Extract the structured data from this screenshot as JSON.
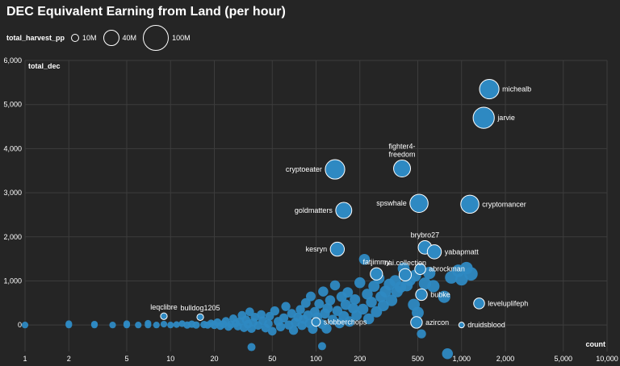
{
  "chart_data": {
    "type": "scatter",
    "title": "DEC Equivalent Earning from Land (per hour)",
    "xlabel": "count",
    "ylabel": "total_dec",
    "x_scale": "log",
    "xlim": [
      1,
      10000
    ],
    "ylim": [
      -600,
      6000
    ],
    "x_ticks": [
      1,
      2,
      5,
      10,
      20,
      50,
      100,
      200,
      500,
      1000,
      2000,
      5000,
      10000
    ],
    "x_tick_labels": [
      "1",
      "2",
      "5",
      "10",
      "20",
      "50",
      "100",
      "200",
      "500",
      "1,000",
      "2,000",
      "5,000",
      "10,000"
    ],
    "y_ticks": [
      0,
      1000,
      2000,
      3000,
      4000,
      5000,
      6000
    ],
    "y_tick_labels": [
      "0",
      "1,000",
      "2,000",
      "3,000",
      "4,000",
      "5,000",
      "6,000"
    ],
    "size_legend": {
      "title": "total_harvest_pp",
      "items": [
        {
          "label": "10M",
          "value": 10
        },
        {
          "label": "40M",
          "value": 40
        },
        {
          "label": "100M",
          "value": 100
        }
      ]
    },
    "colors": {
      "point": "#2e89c2",
      "stroke": "#ffffff",
      "grid": "#3d3d3d",
      "background": "#252525"
    },
    "labeled_points": [
      {
        "name": "michealb",
        "x": 1550,
        "y": 5350,
        "size": 45
      },
      {
        "name": "jarvie",
        "x": 1420,
        "y": 4700,
        "size": 55
      },
      {
        "name": "fighter4-\nfreedom",
        "x": 390,
        "y": 3550,
        "size": 32
      },
      {
        "name": "cryptoeater",
        "x": 135,
        "y": 3530,
        "size": 45
      },
      {
        "name": "spswhale",
        "x": 510,
        "y": 2760,
        "size": 38
      },
      {
        "name": "cryptomancer",
        "x": 1140,
        "y": 2740,
        "size": 38
      },
      {
        "name": "goldmatters",
        "x": 155,
        "y": 2600,
        "size": 28
      },
      {
        "name": "brybro27",
        "x": 560,
        "y": 1760,
        "size": 18
      },
      {
        "name": "yabapmatt",
        "x": 650,
        "y": 1660,
        "size": 20
      },
      {
        "name": "kesryn",
        "x": 140,
        "y": 1720,
        "size": 20
      },
      {
        "name": "fatjimmy",
        "x": 260,
        "y": 1160,
        "size": 14
      },
      {
        "name": "nai.collection",
        "x": 410,
        "y": 1140,
        "size": 14
      },
      {
        "name": "abrockman",
        "x": 520,
        "y": 1270,
        "size": 10
      },
      {
        "name": "bubke",
        "x": 530,
        "y": 690,
        "size": 12
      },
      {
        "name": "leveluplifeph",
        "x": 1320,
        "y": 490,
        "size": 10
      },
      {
        "name": "leqclibre",
        "x": 9,
        "y": 200,
        "size": 2
      },
      {
        "name": "bulldog1205",
        "x": 16,
        "y": 180,
        "size": 2
      },
      {
        "name": "slobberchops",
        "x": 100,
        "y": 70,
        "size": 5
      },
      {
        "name": "azircon",
        "x": 490,
        "y": 60,
        "size": 12
      },
      {
        "name": "druidsblood",
        "x": 1000,
        "y": 0,
        "size": 1
      }
    ],
    "other_points": [
      {
        "x": 1,
        "y": 0,
        "size": 2
      },
      {
        "x": 2,
        "y": 0,
        "size": 2
      },
      {
        "x": 2,
        "y": 30,
        "size": 2
      },
      {
        "x": 3,
        "y": 0,
        "size": 2
      },
      {
        "x": 3,
        "y": 20,
        "size": 2
      },
      {
        "x": 4,
        "y": 0,
        "size": 2
      },
      {
        "x": 5,
        "y": 0,
        "size": 2
      },
      {
        "x": 5,
        "y": 30,
        "size": 2
      },
      {
        "x": 6,
        "y": 0,
        "size": 2
      },
      {
        "x": 7,
        "y": 0,
        "size": 2
      },
      {
        "x": 7,
        "y": 40,
        "size": 2
      },
      {
        "x": 8,
        "y": 0,
        "size": 2
      },
      {
        "x": 9,
        "y": 20,
        "size": 2
      },
      {
        "x": 10,
        "y": 0,
        "size": 2
      },
      {
        "x": 11,
        "y": 10,
        "size": 2
      },
      {
        "x": 12,
        "y": 30,
        "size": 2
      },
      {
        "x": 13,
        "y": 0,
        "size": 3
      },
      {
        "x": 14,
        "y": 20,
        "size": 3
      },
      {
        "x": 15,
        "y": 0,
        "size": 3
      },
      {
        "x": 17,
        "y": 10,
        "size": 3
      },
      {
        "x": 18,
        "y": 0,
        "size": 3
      },
      {
        "x": 19,
        "y": 40,
        "size": 3
      },
      {
        "x": 20,
        "y": 0,
        "size": 4
      },
      {
        "x": 21,
        "y": 60,
        "size": 4
      },
      {
        "x": 22,
        "y": -20,
        "size": 4
      },
      {
        "x": 23,
        "y": 20,
        "size": 4
      },
      {
        "x": 24,
        "y": 90,
        "size": 4
      },
      {
        "x": 25,
        "y": -40,
        "size": 4
      },
      {
        "x": 26,
        "y": 10,
        "size": 4
      },
      {
        "x": 27,
        "y": 150,
        "size": 4
      },
      {
        "x": 28,
        "y": 40,
        "size": 4
      },
      {
        "x": 29,
        "y": -30,
        "size": 4
      },
      {
        "x": 30,
        "y": 80,
        "size": 5
      },
      {
        "x": 31,
        "y": 220,
        "size": 5
      },
      {
        "x": 32,
        "y": -60,
        "size": 5
      },
      {
        "x": 33,
        "y": 120,
        "size": 5
      },
      {
        "x": 34,
        "y": 20,
        "size": 5
      },
      {
        "x": 35,
        "y": 300,
        "size": 5
      },
      {
        "x": 36,
        "y": -80,
        "size": 5
      },
      {
        "x": 37,
        "y": 60,
        "size": 5
      },
      {
        "x": 38,
        "y": 180,
        "size": 5
      },
      {
        "x": 40,
        "y": -10,
        "size": 5
      },
      {
        "x": 42,
        "y": 240,
        "size": 5
      },
      {
        "x": 43,
        "y": 100,
        "size": 5
      },
      {
        "x": 45,
        "y": -70,
        "size": 5
      },
      {
        "x": 47,
        "y": 30,
        "size": 5
      },
      {
        "x": 48,
        "y": 200,
        "size": 5
      },
      {
        "x": 50,
        "y": -140,
        "size": 5
      },
      {
        "x": 52,
        "y": 320,
        "size": 6
      },
      {
        "x": 55,
        "y": 80,
        "size": 6
      },
      {
        "x": 57,
        "y": -40,
        "size": 6
      },
      {
        "x": 60,
        "y": 160,
        "size": 6
      },
      {
        "x": 62,
        "y": 420,
        "size": 6
      },
      {
        "x": 65,
        "y": 0,
        "size": 6
      },
      {
        "x": 68,
        "y": 260,
        "size": 6
      },
      {
        "x": 70,
        "y": -120,
        "size": 6
      },
      {
        "x": 72,
        "y": 60,
        "size": 6
      },
      {
        "x": 75,
        "y": 180,
        "size": 6
      },
      {
        "x": 78,
        "y": 350,
        "size": 6
      },
      {
        "x": 80,
        "y": -10,
        "size": 6
      },
      {
        "x": 82,
        "y": 130,
        "size": 6
      },
      {
        "x": 85,
        "y": 500,
        "size": 7
      },
      {
        "x": 88,
        "y": 220,
        "size": 7
      },
      {
        "x": 90,
        "y": 40,
        "size": 7
      },
      {
        "x": 92,
        "y": 650,
        "size": 7
      },
      {
        "x": 95,
        "y": -90,
        "size": 7
      },
      {
        "x": 98,
        "y": 300,
        "size": 7
      },
      {
        "x": 102,
        "y": 180,
        "size": 7
      },
      {
        "x": 105,
        "y": 480,
        "size": 7
      },
      {
        "x": 110,
        "y": 20,
        "size": 7
      },
      {
        "x": 112,
        "y": 760,
        "size": 8
      },
      {
        "x": 115,
        "y": 260,
        "size": 8
      },
      {
        "x": 118,
        "y": -80,
        "size": 8
      },
      {
        "x": 120,
        "y": 380,
        "size": 8
      },
      {
        "x": 125,
        "y": 560,
        "size": 8
      },
      {
        "x": 130,
        "y": 120,
        "size": 8
      },
      {
        "x": 135,
        "y": 900,
        "size": 8
      },
      {
        "x": 140,
        "y": 320,
        "size": 8
      },
      {
        "x": 145,
        "y": 40,
        "size": 8
      },
      {
        "x": 150,
        "y": 640,
        "size": 9
      },
      {
        "x": 155,
        "y": 200,
        "size": 9
      },
      {
        "x": 160,
        "y": 460,
        "size": 9
      },
      {
        "x": 165,
        "y": 740,
        "size": 9
      },
      {
        "x": 170,
        "y": 80,
        "size": 9
      },
      {
        "x": 180,
        "y": 380,
        "size": 9
      },
      {
        "x": 185,
        "y": 580,
        "size": 9
      },
      {
        "x": 190,
        "y": 220,
        "size": 9
      },
      {
        "x": 200,
        "y": 960,
        "size": 10
      },
      {
        "x": 210,
        "y": 360,
        "size": 10
      },
      {
        "x": 215,
        "y": 1490,
        "size": 10
      },
      {
        "x": 225,
        "y": 700,
        "size": 10
      },
      {
        "x": 230,
        "y": 140,
        "size": 10
      },
      {
        "x": 240,
        "y": 520,
        "size": 10
      },
      {
        "x": 250,
        "y": 880,
        "size": 11
      },
      {
        "x": 260,
        "y": 300,
        "size": 11
      },
      {
        "x": 270,
        "y": 1060,
        "size": 11
      },
      {
        "x": 280,
        "y": 640,
        "size": 11
      },
      {
        "x": 290,
        "y": 440,
        "size": 11
      },
      {
        "x": 300,
        "y": 760,
        "size": 12
      },
      {
        "x": 320,
        "y": 920,
        "size": 12
      },
      {
        "x": 330,
        "y": 560,
        "size": 12
      },
      {
        "x": 350,
        "y": 1000,
        "size": 12
      },
      {
        "x": 360,
        "y": 760,
        "size": 12
      },
      {
        "x": 380,
        "y": 860,
        "size": 12
      },
      {
        "x": 400,
        "y": 1280,
        "size": 13
      },
      {
        "x": 420,
        "y": 900,
        "size": 13
      },
      {
        "x": 440,
        "y": 1020,
        "size": 13
      },
      {
        "x": 470,
        "y": 460,
        "size": 13
      },
      {
        "x": 480,
        "y": 1120,
        "size": 13
      },
      {
        "x": 500,
        "y": 280,
        "size": 13
      },
      {
        "x": 530,
        "y": -200,
        "size": 6
      },
      {
        "x": 560,
        "y": 940,
        "size": 14
      },
      {
        "x": 600,
        "y": 1180,
        "size": 14
      },
      {
        "x": 640,
        "y": 880,
        "size": 14
      },
      {
        "x": 760,
        "y": 640,
        "size": 14
      },
      {
        "x": 800,
        "y": -650,
        "size": 10
      },
      {
        "x": 850,
        "y": 1080,
        "size": 15
      },
      {
        "x": 950,
        "y": 1230,
        "size": 15
      },
      {
        "x": 1000,
        "y": 1040,
        "size": 15
      },
      {
        "x": 1080,
        "y": 1290,
        "size": 15
      },
      {
        "x": 1160,
        "y": 1160,
        "size": 18
      },
      {
        "x": 110,
        "y": -480,
        "size": 4
      },
      {
        "x": 36,
        "y": -500,
        "size": 4
      }
    ]
  }
}
